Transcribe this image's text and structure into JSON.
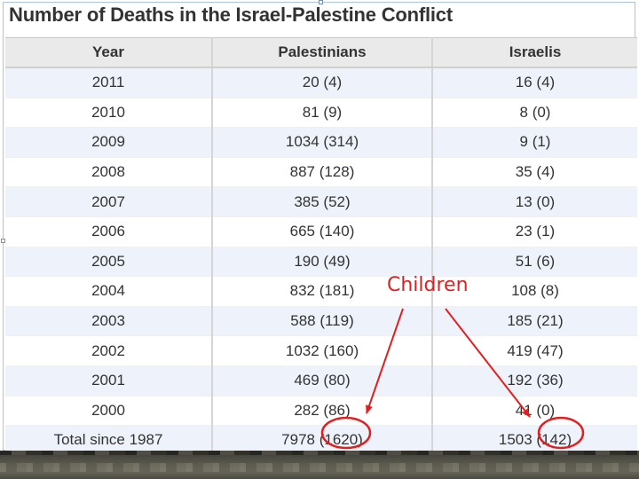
{
  "title": "Number of Deaths in the Israel-Palestine Conflict",
  "table": {
    "headers": [
      "Year",
      "Palestinians",
      "Israelis"
    ],
    "rows": [
      [
        "2011",
        "20 (4)",
        "16 (4)"
      ],
      [
        "2010",
        "81 (9)",
        "8 (0)"
      ],
      [
        "2009",
        "1034 (314)",
        "9 (1)"
      ],
      [
        "2008",
        "887 (128)",
        "35 (4)"
      ],
      [
        "2007",
        "385 (52)",
        "13 (0)"
      ],
      [
        "2006",
        "665 (140)",
        "23 (1)"
      ],
      [
        "2005",
        "190 (49)",
        "51 (6)"
      ],
      [
        "2004",
        "832 (181)",
        "108 (8)"
      ],
      [
        "2003",
        "588 (119)",
        "185 (21)"
      ],
      [
        "2002",
        "1032 (160)",
        "419 (47)"
      ],
      [
        "2001",
        "469 (80)",
        "192 (36)"
      ],
      [
        "2000",
        "282 (86)",
        "41 (0)"
      ],
      [
        "Total since 1987",
        "7978 (1620)",
        "1503 (142)"
      ]
    ]
  },
  "annotation": {
    "label": "Children",
    "color": "#e02020"
  }
}
